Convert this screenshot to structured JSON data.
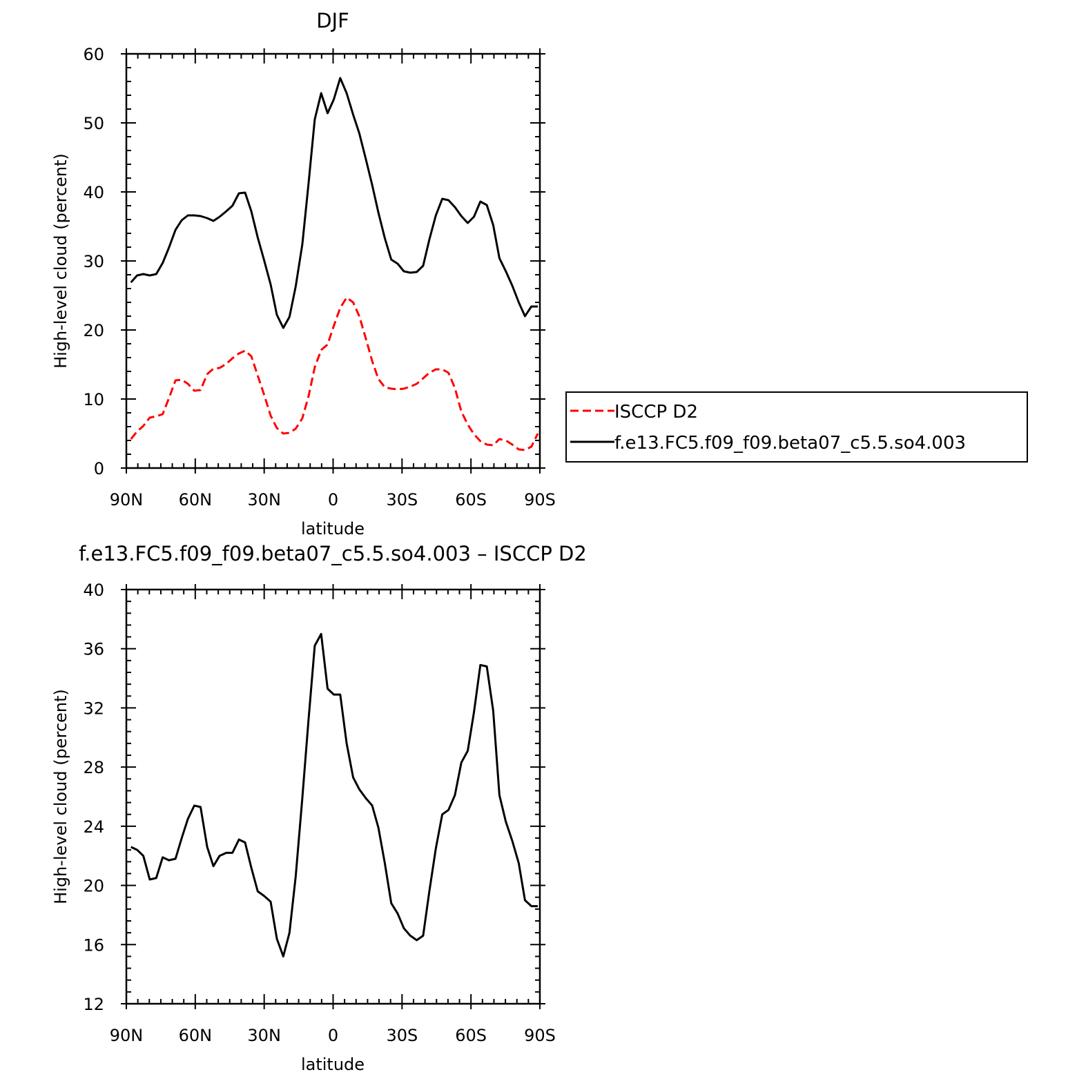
{
  "chart_data": [
    {
      "type": "line",
      "title": "DJF",
      "xlabel": "latitude",
      "ylabel": "High-level cloud (percent)",
      "xlim": [
        90,
        -90
      ],
      "ylim": [
        0,
        60
      ],
      "x_ticks": [
        90,
        60,
        30,
        0,
        -30,
        -60,
        -90
      ],
      "x_tick_labels": [
        "90N",
        "60N",
        "30N",
        "0",
        "30S",
        "60S",
        "90S"
      ],
      "y_ticks": [
        0,
        10,
        20,
        30,
        40,
        50,
        60
      ],
      "y_tick_labels": [
        "0",
        "10",
        "20",
        "30",
        "40",
        "50",
        "60"
      ],
      "legend_position": "right",
      "x": [
        88.0,
        85.3,
        82.6,
        79.8,
        77.0,
        74.2,
        71.5,
        68.6,
        65.9,
        63.2,
        60.4,
        57.7,
        54.8,
        52.1,
        49.4,
        46.5,
        43.8,
        41.0,
        38.3,
        35.6,
        32.8,
        30.1,
        27.2,
        24.5,
        21.7,
        19.0,
        16.3,
        13.4,
        10.7,
        8.0,
        5.2,
        2.4,
        -0.3,
        -3.1,
        -5.9,
        -8.7,
        -11.4,
        -14.2,
        -17.0,
        -19.7,
        -22.5,
        -25.3,
        -28.1,
        -30.8,
        -33.6,
        -36.4,
        -39.2,
        -41.9,
        -44.7,
        -47.5,
        -50.2,
        -53.0,
        -55.8,
        -58.6,
        -61.3,
        -64.1,
        -66.9,
        -69.7,
        -72.4,
        -75.2,
        -78.0,
        -80.8,
        -83.5,
        -86.3,
        -89.1
      ],
      "series": [
        {
          "name": "ISCCP D2",
          "color": "#ff0000",
          "dash": "dashed",
          "values": [
            4.2,
            5.3,
            6.1,
            7.3,
            7.5,
            7.8,
            10.1,
            12.7,
            12.8,
            12.2,
            11.2,
            11.3,
            13.6,
            14.4,
            14.5,
            15.1,
            15.9,
            16.6,
            17.0,
            16.2,
            13.4,
            10.7,
            7.6,
            5.8,
            5.0,
            5.1,
            5.7,
            7.2,
            10.4,
            14.6,
            17.1,
            17.9,
            20.6,
            23.2,
            24.7,
            24.0,
            22.0,
            18.8,
            15.5,
            12.9,
            11.7,
            11.5,
            11.4,
            11.5,
            11.8,
            12.2,
            13.0,
            13.8,
            14.3,
            14.3,
            13.8,
            11.6,
            8.2,
            6.3,
            4.9,
            3.9,
            3.4,
            3.3,
            4.2,
            4.0,
            3.4,
            2.7,
            2.6,
            3.1,
            5.0
          ]
        },
        {
          "name": "f.e13.FC5.f09_f09.beta07_c5.5.so4.003",
          "color": "#000000",
          "dash": "solid",
          "values": [
            26.9,
            27.9,
            28.1,
            27.9,
            28.1,
            29.7,
            31.9,
            34.5,
            35.9,
            36.6,
            36.6,
            36.5,
            36.2,
            35.8,
            36.4,
            37.2,
            38.0,
            39.8,
            39.9,
            37.2,
            33.4,
            30.2,
            26.6,
            22.2,
            20.3,
            21.9,
            26.3,
            32.4,
            41.2,
            50.5,
            54.3,
            51.4,
            53.4,
            56.5,
            54.3,
            51.2,
            48.5,
            44.8,
            41.0,
            37.0,
            33.3,
            30.2,
            29.6,
            28.5,
            28.3,
            28.4,
            29.3,
            33.1,
            36.6,
            39.0,
            38.8,
            37.8,
            36.5,
            35.5,
            36.4,
            38.6,
            38.1,
            35.2,
            30.4,
            28.5,
            26.4,
            24.0,
            22.0,
            23.4,
            23.4
          ]
        }
      ]
    },
    {
      "type": "line",
      "title": "f.e13.FC5.f09_f09.beta07_c5.5.so4.003 – ISCCP D2",
      "xlabel": "latitude",
      "ylabel": "High-level cloud (percent)",
      "xlim": [
        90,
        -90
      ],
      "ylim": [
        12,
        40
      ],
      "x_ticks": [
        90,
        60,
        30,
        0,
        -30,
        -60,
        -90
      ],
      "x_tick_labels": [
        "90N",
        "60N",
        "30N",
        "0",
        "30S",
        "60S",
        "90S"
      ],
      "y_ticks": [
        12,
        16,
        20,
        24,
        28,
        32,
        36,
        40
      ],
      "y_tick_labels": [
        "12",
        "16",
        "20",
        "24",
        "28",
        "32",
        "36",
        "40"
      ],
      "x": [
        88.0,
        85.3,
        82.6,
        79.8,
        77.0,
        74.2,
        71.5,
        68.6,
        65.9,
        63.2,
        60.4,
        57.7,
        54.8,
        52.1,
        49.4,
        46.5,
        43.8,
        41.0,
        38.3,
        35.6,
        32.8,
        30.1,
        27.2,
        24.5,
        21.7,
        19.0,
        16.3,
        13.4,
        10.7,
        8.0,
        5.2,
        2.4,
        -0.3,
        -3.1,
        -5.9,
        -8.7,
        -11.4,
        -14.2,
        -17.0,
        -19.7,
        -22.5,
        -25.3,
        -28.1,
        -30.8,
        -33.6,
        -36.4,
        -39.2,
        -41.9,
        -44.7,
        -47.5,
        -50.2,
        -53.0,
        -55.8,
        -58.6,
        -61.3,
        -64.1,
        -66.9,
        -69.7,
        -72.4,
        -75.2,
        -78.0,
        -80.8,
        -83.5,
        -86.3,
        -89.1
      ],
      "series": [
        {
          "color": "#000000",
          "dash": "solid",
          "values": [
            22.6,
            22.4,
            22.0,
            20.4,
            20.5,
            21.9,
            21.7,
            21.8,
            23.2,
            24.5,
            25.4,
            25.3,
            22.6,
            21.3,
            22.0,
            22.2,
            22.2,
            23.1,
            22.9,
            21.2,
            19.6,
            19.3,
            18.9,
            16.4,
            15.2,
            16.8,
            20.6,
            25.9,
            31.2,
            36.2,
            37.0,
            33.3,
            32.9,
            32.9,
            29.6,
            27.3,
            26.5,
            25.9,
            25.4,
            23.9,
            21.5,
            18.8,
            18.1,
            17.1,
            16.6,
            16.3,
            16.6,
            19.6,
            22.5,
            24.8,
            25.1,
            26.1,
            28.3,
            29.1,
            31.7,
            34.9,
            34.8,
            31.8,
            26.1,
            24.3,
            23.0,
            21.5,
            19.0,
            18.6,
            18.6
          ]
        }
      ]
    }
  ]
}
